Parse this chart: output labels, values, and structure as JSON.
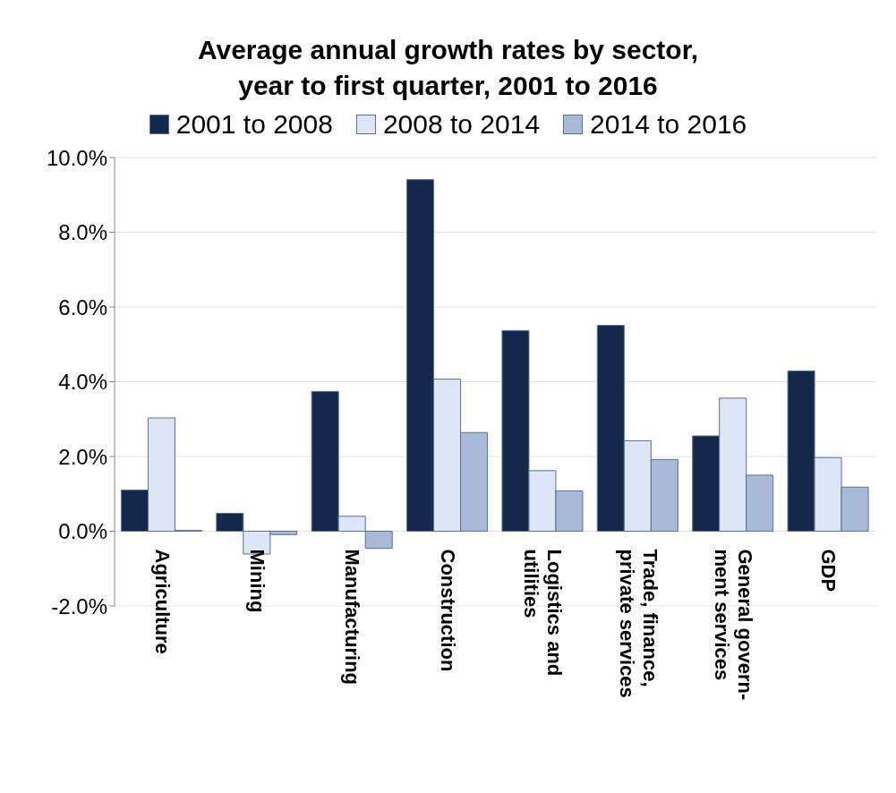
{
  "chart_data": {
    "type": "bar",
    "title": "Average annual growth rates by sector,\nyear to first quarter, 2001 to 2016",
    "categories": [
      "Agriculture",
      "Mining",
      "Manufacturing",
      "Construction",
      "Logistics and\nutilities",
      "Trade, finance,\nprivate services",
      "General govern-\nment services",
      "GDP"
    ],
    "series": [
      {
        "name": "2001 to 2008",
        "color": "#13284a",
        "values": [
          1.1,
          0.48,
          3.74,
          9.41,
          5.37,
          5.51,
          2.55,
          4.29
        ]
      },
      {
        "name": "2008 to 2014",
        "color": "#dce6f4",
        "values": [
          3.03,
          -0.61,
          0.4,
          4.07,
          1.62,
          2.42,
          3.56,
          1.97
        ]
      },
      {
        "name": "2014 to 2016",
        "color": "#a9b9d8",
        "values": [
          0.02,
          -0.09,
          -0.46,
          2.64,
          1.08,
          1.92,
          1.5,
          1.18
        ]
      }
    ],
    "ylim": [
      -2,
      10
    ],
    "yticks": [
      {
        "value": -2,
        "label": "-2.0%"
      },
      {
        "value": 0,
        "label": "0.0%"
      },
      {
        "value": 2,
        "label": "2.0%"
      },
      {
        "value": 4,
        "label": "4.0%"
      },
      {
        "value": 6,
        "label": "6.0%"
      },
      {
        "value": 8,
        "label": "8.0%"
      },
      {
        "value": 10,
        "label": "10.0%"
      }
    ],
    "grid": "y",
    "legend": "top"
  }
}
